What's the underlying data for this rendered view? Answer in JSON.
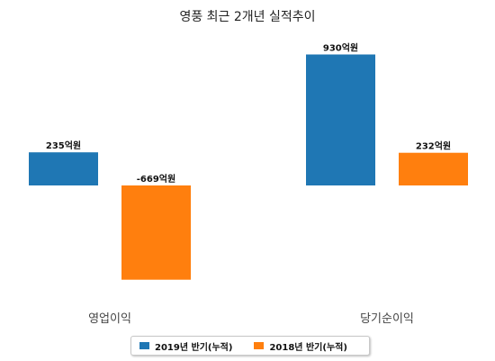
{
  "chart_data": {
    "type": "bar",
    "title": "영풍 최근 2개년 실적추이",
    "categories": [
      "영업이익",
      "당기순이익"
    ],
    "series": [
      {
        "name": "2019년 반기(누적)",
        "color": "#1f77b4",
        "values": [
          235,
          930
        ],
        "labels": [
          "235억원",
          "930억원"
        ]
      },
      {
        "name": "2018년 반기(누적)",
        "color": "#ff7f0e",
        "values": [
          -669,
          232
        ],
        "labels": [
          "-669억원",
          "232억원"
        ]
      }
    ],
    "ylim": [
      -1000,
      1000
    ],
    "grid": false,
    "legend_position": "bottom"
  }
}
